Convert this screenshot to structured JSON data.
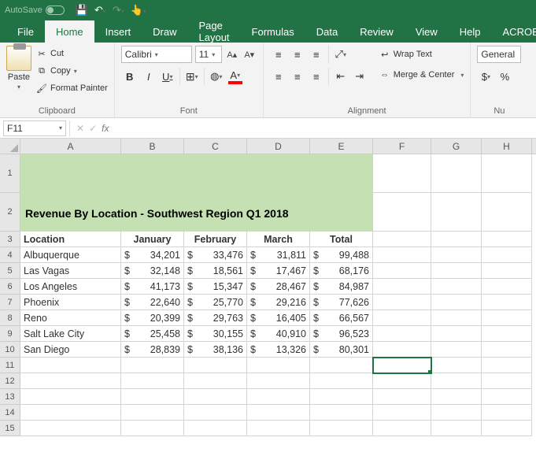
{
  "titlebar": {
    "autosave_label": "AutoSave"
  },
  "tabs": [
    "File",
    "Home",
    "Insert",
    "Draw",
    "Page Layout",
    "Formulas",
    "Data",
    "Review",
    "View",
    "Help",
    "ACROBAT"
  ],
  "active_tab": 1,
  "ribbon": {
    "clipboard": {
      "paste": "Paste",
      "cut": "Cut",
      "copy": "Copy",
      "fp": "Format Painter",
      "label": "Clipboard"
    },
    "font": {
      "name": "Calibri",
      "size": "11",
      "label": "Font"
    },
    "alignment": {
      "wrap": "Wrap Text",
      "merge": "Merge & Center",
      "label": "Alignment"
    },
    "number": {
      "format": "General",
      "label": "Nu"
    }
  },
  "namebox": "F11",
  "columns": [
    "A",
    "B",
    "C",
    "D",
    "E",
    "F",
    "G",
    "H"
  ],
  "title_cell": "Revenue By Location - Southwest Region Q1 2018",
  "headers": {
    "loc": "Location",
    "jan": "January",
    "feb": "February",
    "mar": "March",
    "tot": "Total"
  },
  "rows": [
    {
      "loc": "Albuquerque",
      "jan": "34,201",
      "feb": "33,476",
      "mar": "31,811",
      "tot": "99,488"
    },
    {
      "loc": "Las Vagas",
      "jan": "32,148",
      "feb": "18,561",
      "mar": "17,467",
      "tot": "68,176"
    },
    {
      "loc": "Los Angeles",
      "jan": "41,173",
      "feb": "15,347",
      "mar": "28,467",
      "tot": "84,987"
    },
    {
      "loc": "Phoenix",
      "jan": "22,640",
      "feb": "25,770",
      "mar": "29,216",
      "tot": "77,626"
    },
    {
      "loc": "Reno",
      "jan": "20,399",
      "feb": "29,763",
      "mar": "16,405",
      "tot": "66,567"
    },
    {
      "loc": "Salt Lake City",
      "jan": "25,458",
      "feb": "30,155",
      "mar": "40,910",
      "tot": "96,523"
    },
    {
      "loc": "San Diego",
      "jan": "28,839",
      "feb": "38,136",
      "mar": "13,326",
      "tot": "80,301"
    }
  ],
  "row_heights": {
    "title": 98
  },
  "selected": {
    "col": "F",
    "row": 11
  },
  "colors": {
    "brand": "#217346",
    "ribbon_bg": "#f3f3f3",
    "title_fill": "#c5e0b3",
    "grid_line": "#d4d4d4",
    "header_bg": "#e6e6e6"
  }
}
